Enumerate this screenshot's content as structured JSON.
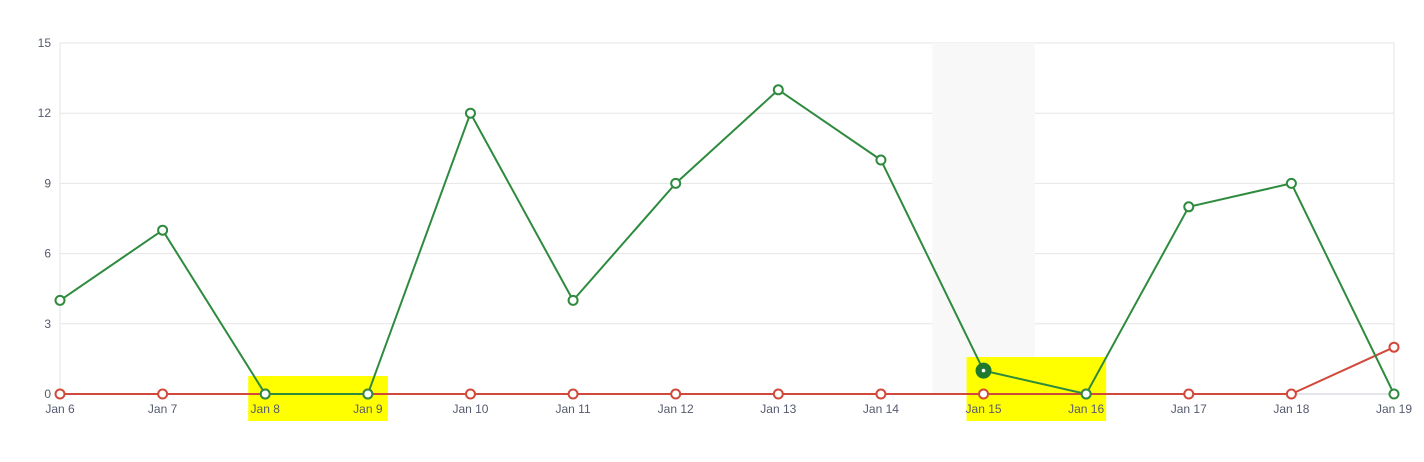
{
  "chart_data": {
    "type": "line",
    "categories": [
      "Jan 6",
      "Jan 7",
      "Jan 8",
      "Jan 9",
      "Jan 10",
      "Jan 11",
      "Jan 12",
      "Jan 13",
      "Jan 14",
      "Jan 15",
      "Jan 16",
      "Jan 17",
      "Jan 18",
      "Jan 19"
    ],
    "y_ticks": [
      "0",
      "3",
      "6",
      "9",
      "12",
      "15"
    ],
    "ylim": [
      0,
      15
    ],
    "grid": true,
    "series": [
      {
        "color": "#2e8b3e",
        "values": [
          4,
          7,
          0,
          0,
          12,
          4,
          9,
          13,
          10,
          1,
          0,
          8,
          9,
          0
        ]
      },
      {
        "color": "#d0493a",
        "values": [
          0,
          0,
          0,
          0,
          0,
          0,
          0,
          0,
          0,
          0,
          0,
          0,
          0,
          2
        ]
      }
    ],
    "highlighted_point": {
      "series": 0,
      "category": "Jan 15",
      "value": 1
    },
    "hover_band_category": "Jan 15",
    "marked_ranges": [
      {
        "from": "Jan 8",
        "to": "Jan 9",
        "color": "#ffff00"
      },
      {
        "from": "Jan 15",
        "to": "Jan 16",
        "color": "#ffff00"
      }
    ]
  }
}
